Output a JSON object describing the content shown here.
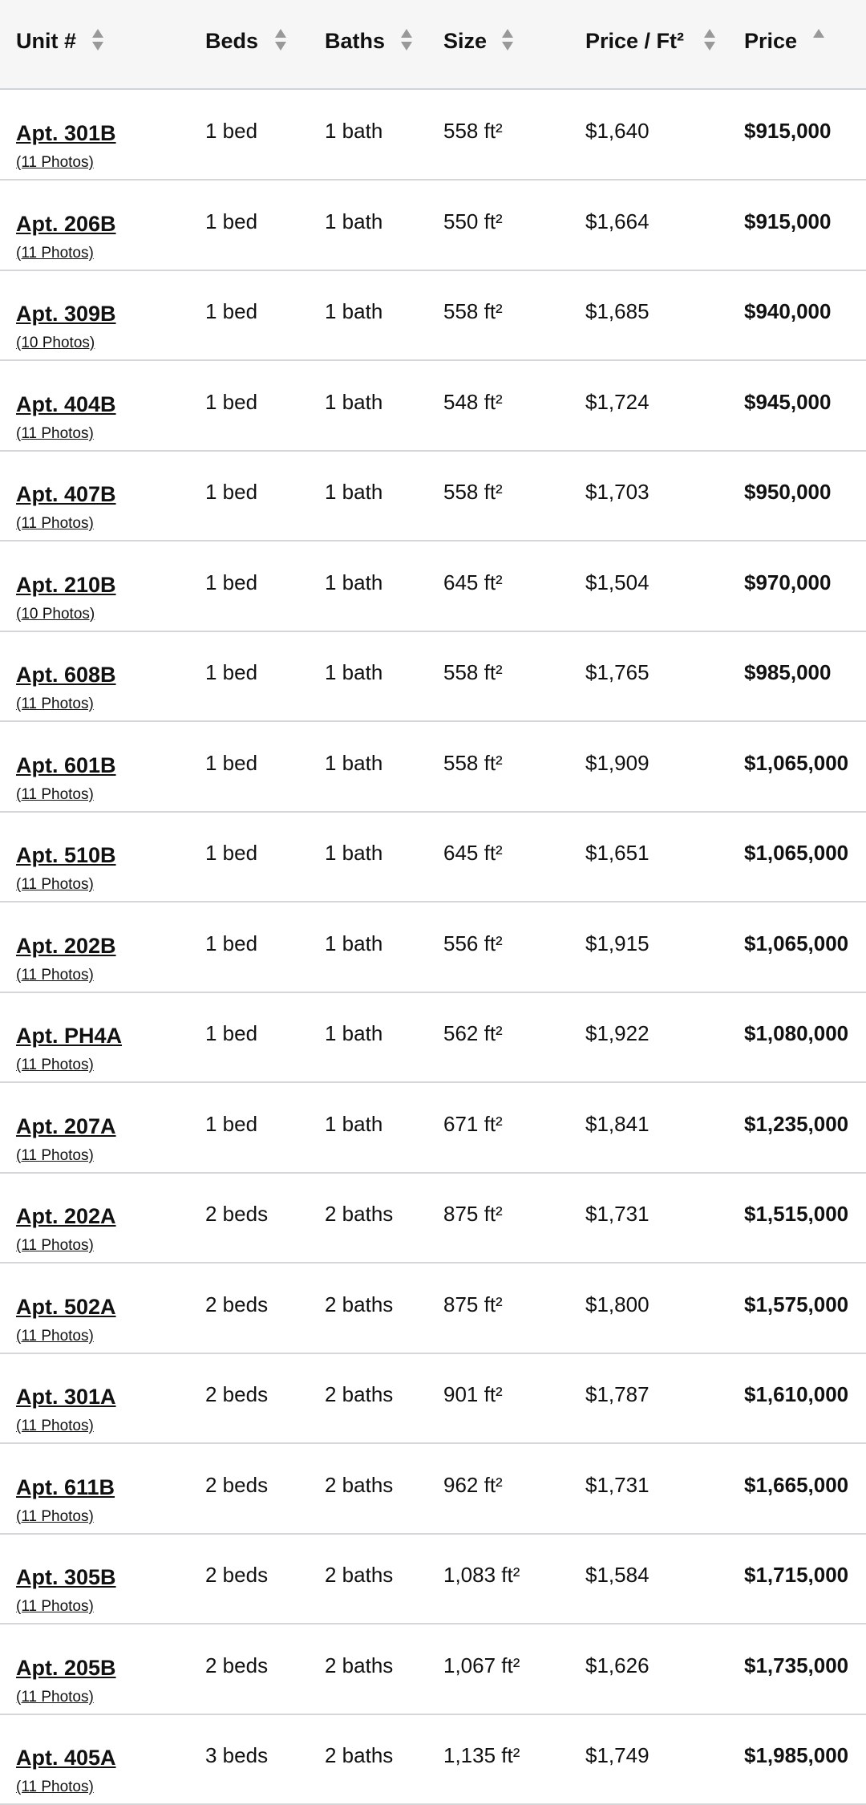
{
  "header": {
    "columns": [
      "Unit #",
      "Beds",
      "Baths",
      "Size",
      "Price / Ft²",
      "Price"
    ]
  },
  "rows": [
    {
      "unit": "Apt. 301B",
      "photos": "(11 Photos)",
      "beds": "1 bed",
      "baths": "1 bath",
      "size": "558 ft²",
      "price_per_ft": "$1,640",
      "price": "$915,000"
    },
    {
      "unit": "Apt. 206B",
      "photos": "(11 Photos)",
      "beds": "1 bed",
      "baths": "1 bath",
      "size": "550 ft²",
      "price_per_ft": "$1,664",
      "price": "$915,000"
    },
    {
      "unit": "Apt. 309B",
      "photos": "(10 Photos)",
      "beds": "1 bed",
      "baths": "1 bath",
      "size": "558 ft²",
      "price_per_ft": "$1,685",
      "price": "$940,000"
    },
    {
      "unit": "Apt. 404B",
      "photos": "(11 Photos)",
      "beds": "1 bed",
      "baths": "1 bath",
      "size": "548 ft²",
      "price_per_ft": "$1,724",
      "price": "$945,000"
    },
    {
      "unit": "Apt. 407B",
      "photos": "(11 Photos)",
      "beds": "1 bed",
      "baths": "1 bath",
      "size": "558 ft²",
      "price_per_ft": "$1,703",
      "price": "$950,000"
    },
    {
      "unit": "Apt. 210B",
      "photos": "(10 Photos)",
      "beds": "1 bed",
      "baths": "1 bath",
      "size": "645 ft²",
      "price_per_ft": "$1,504",
      "price": "$970,000"
    },
    {
      "unit": "Apt. 608B",
      "photos": "(11 Photos)",
      "beds": "1 bed",
      "baths": "1 bath",
      "size": "558 ft²",
      "price_per_ft": "$1,765",
      "price": "$985,000"
    },
    {
      "unit": "Apt. 601B",
      "photos": "(11 Photos)",
      "beds": "1 bed",
      "baths": "1 bath",
      "size": "558 ft²",
      "price_per_ft": "$1,909",
      "price": "$1,065,000"
    },
    {
      "unit": "Apt. 510B",
      "photos": "(11 Photos)",
      "beds": "1 bed",
      "baths": "1 bath",
      "size": "645 ft²",
      "price_per_ft": "$1,651",
      "price": "$1,065,000"
    },
    {
      "unit": "Apt. 202B",
      "photos": "(11 Photos)",
      "beds": "1 bed",
      "baths": "1 bath",
      "size": "556 ft²",
      "price_per_ft": "$1,915",
      "price": "$1,065,000"
    },
    {
      "unit": "Apt. PH4A",
      "photos": "(11 Photos)",
      "beds": "1 bed",
      "baths": "1 bath",
      "size": "562 ft²",
      "price_per_ft": "$1,922",
      "price": "$1,080,000"
    },
    {
      "unit": "Apt. 207A",
      "photos": "(11 Photos)",
      "beds": "1 bed",
      "baths": "1 bath",
      "size": "671 ft²",
      "price_per_ft": "$1,841",
      "price": "$1,235,000"
    },
    {
      "unit": "Apt. 202A",
      "photos": "(11 Photos)",
      "beds": "2 beds",
      "baths": "2 baths",
      "size": "875 ft²",
      "price_per_ft": "$1,731",
      "price": "$1,515,000"
    },
    {
      "unit": "Apt. 502A",
      "photos": "(11 Photos)",
      "beds": "2 beds",
      "baths": "2 baths",
      "size": "875 ft²",
      "price_per_ft": "$1,800",
      "price": "$1,575,000"
    },
    {
      "unit": "Apt. 301A",
      "photos": "(11 Photos)",
      "beds": "2 beds",
      "baths": "2 baths",
      "size": "901 ft²",
      "price_per_ft": "$1,787",
      "price": "$1,610,000"
    },
    {
      "unit": "Apt. 611B",
      "photos": "(11 Photos)",
      "beds": "2 beds",
      "baths": "2 baths",
      "size": "962 ft²",
      "price_per_ft": "$1,731",
      "price": "$1,665,000"
    },
    {
      "unit": "Apt. 305B",
      "photos": "(11 Photos)",
      "beds": "2 beds",
      "baths": "2 baths",
      "size": "1,083 ft²",
      "price_per_ft": "$1,584",
      "price": "$1,715,000"
    },
    {
      "unit": "Apt. 205B",
      "photos": "(11 Photos)",
      "beds": "2 beds",
      "baths": "2 baths",
      "size": "1,067 ft²",
      "price_per_ft": "$1,626",
      "price": "$1,735,000"
    },
    {
      "unit": "Apt. 405A",
      "photos": "(11 Photos)",
      "beds": "3 beds",
      "baths": "2 baths",
      "size": "1,135 ft²",
      "price_per_ft": "$1,749",
      "price": "$1,985,000"
    }
  ]
}
